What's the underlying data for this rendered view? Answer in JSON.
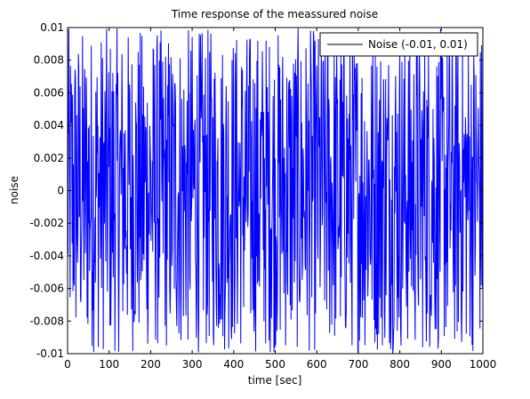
{
  "chart_data": {
    "type": "line",
    "title": "Time response of the meassured noise",
    "xlabel": "time [sec]",
    "ylabel": "noise",
    "xlim": [
      0,
      1000
    ],
    "ylim": [
      -0.01,
      0.01
    ],
    "xticks": [
      0,
      100,
      200,
      300,
      400,
      500,
      600,
      700,
      800,
      900,
      1000
    ],
    "xtick_labels": [
      "0",
      "100",
      "200",
      "300",
      "400",
      "500",
      "600",
      "700",
      "800",
      "900",
      "1000"
    ],
    "yticks": [
      -0.01,
      -0.008,
      -0.006,
      -0.004,
      -0.002,
      0,
      0.002,
      0.004,
      0.006,
      0.008,
      0.01
    ],
    "ytick_labels": [
      "-0.01",
      "-0.008",
      "-0.006",
      "-0.004",
      "-0.002",
      "0",
      "0.002",
      "0.004",
      "0.006",
      "0.008",
      "0.01"
    ],
    "grid": false,
    "legend_position": "top-right",
    "series": [
      {
        "name": "Noise (-0.01, 0.01)",
        "color": "#0000ff",
        "x_start": 0,
        "x_end": 1000,
        "x_step": 1,
        "distribution": "uniform",
        "range": [
          -0.01,
          0.01
        ]
      }
    ],
    "legend_line_color": "#000000"
  }
}
